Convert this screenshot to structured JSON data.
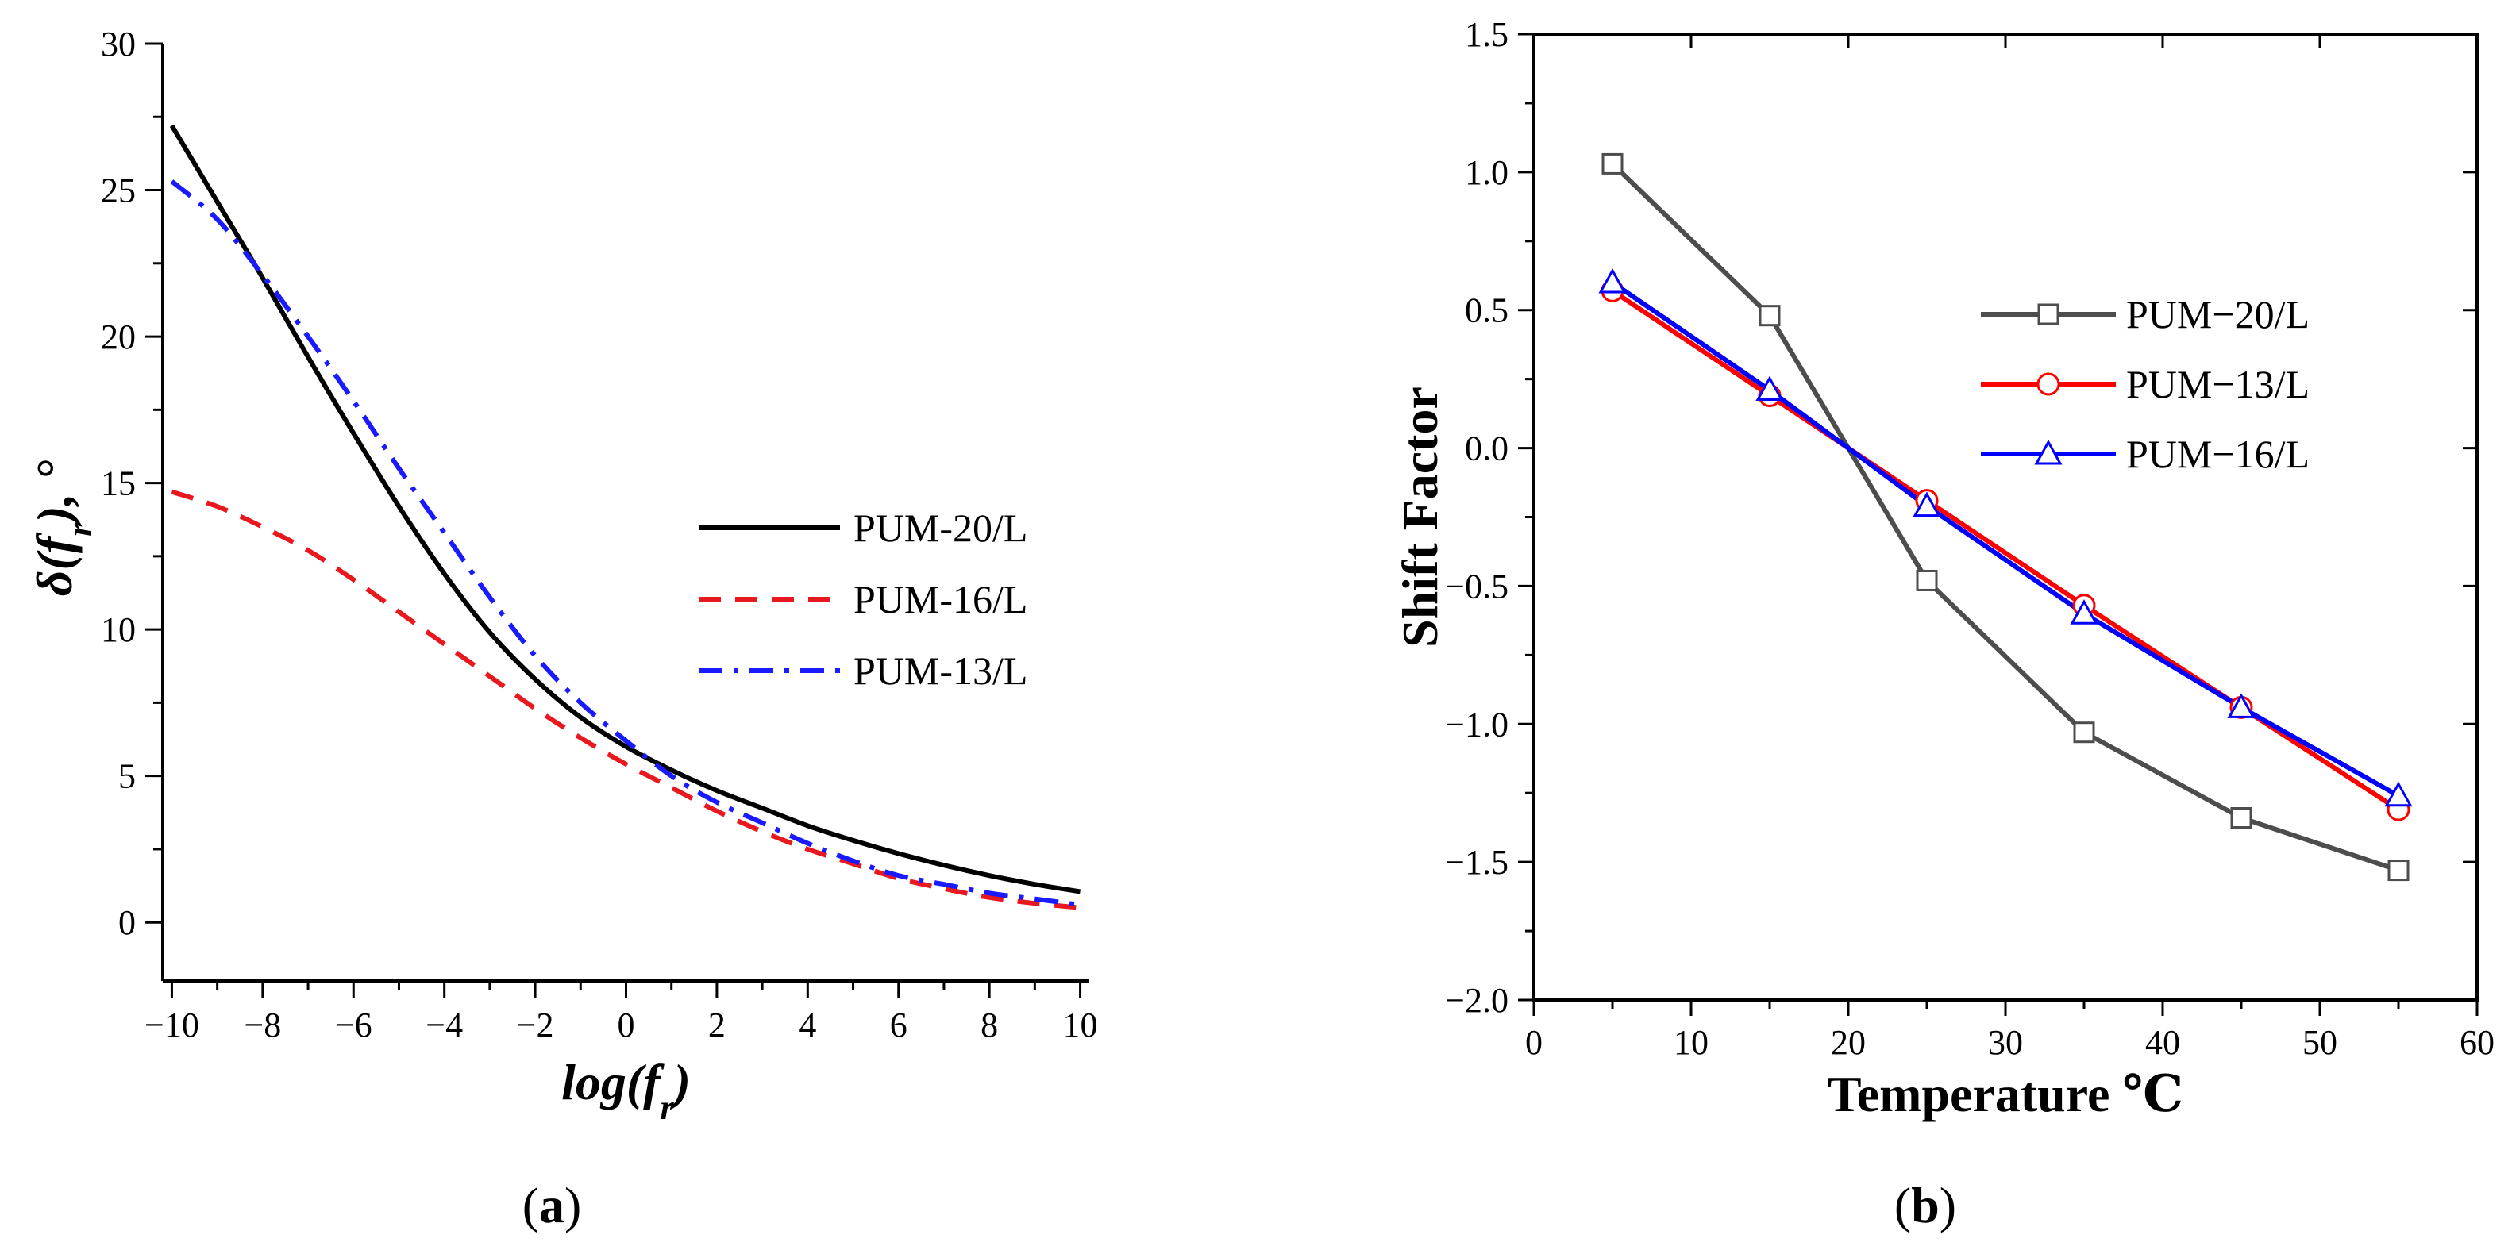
{
  "chart_data": [
    {
      "id": "a",
      "type": "line",
      "caption_letter": "a",
      "xlabel": "log(f_r)",
      "ylabel": "δ(f_r), °",
      "xlim": [
        -10.2,
        10.2
      ],
      "ylim": [
        -2,
        30
      ],
      "xticks": [
        -10,
        -8,
        -6,
        -4,
        -2,
        0,
        2,
        4,
        6,
        8,
        10
      ],
      "xtick_labels": [
        "−10",
        "−8",
        "−6",
        "−4",
        "−2",
        "0",
        "2",
        "4",
        "6",
        "8",
        "10"
      ],
      "yticks": [
        0,
        5,
        10,
        15,
        20,
        25,
        30
      ],
      "ytick_labels": [
        "0",
        "5",
        "10",
        "15",
        "20",
        "25",
        "30"
      ],
      "legend": "center-right",
      "series": [
        {
          "name": "PUM-20/L",
          "color": "#000000",
          "style": "solid",
          "x": [
            -10,
            -9,
            -8,
            -7,
            -6,
            -5,
            -4,
            -3,
            -2,
            -1,
            0,
            1,
            2,
            3,
            4,
            5,
            6,
            7,
            8,
            9,
            10
          ],
          "y": [
            27.2,
            24.6,
            22.0,
            19.3,
            16.7,
            14.2,
            11.9,
            9.9,
            8.3,
            7.0,
            6.0,
            5.2,
            4.5,
            3.9,
            3.3,
            2.8,
            2.35,
            1.95,
            1.6,
            1.3,
            1.05
          ]
        },
        {
          "name": "PUM-16/L",
          "color": "#e8191e",
          "style": "dashed",
          "x": [
            -10,
            -9,
            -8,
            -7,
            -6,
            -5,
            -4,
            -3,
            -2,
            -1,
            0,
            1,
            2,
            3,
            4,
            5,
            6,
            7,
            8,
            9,
            10
          ],
          "y": [
            14.7,
            14.2,
            13.5,
            12.7,
            11.7,
            10.6,
            9.5,
            8.4,
            7.3,
            6.3,
            5.4,
            4.6,
            3.8,
            3.1,
            2.5,
            2.0,
            1.5,
            1.15,
            0.85,
            0.65,
            0.5
          ]
        },
        {
          "name": "PUM-13/L",
          "color": "#1a1aff",
          "style": "dashdot",
          "x": [
            -10,
            -9,
            -8,
            -7,
            -6,
            -5,
            -4,
            -3,
            -2,
            -1,
            0,
            1,
            2,
            3,
            4,
            5,
            6,
            7,
            8,
            9,
            10
          ],
          "y": [
            25.3,
            24.0,
            22.1,
            20.0,
            17.8,
            15.5,
            13.3,
            11.1,
            9.1,
            7.5,
            6.2,
            5.0,
            4.1,
            3.4,
            2.7,
            2.1,
            1.6,
            1.3,
            1.0,
            0.8,
            0.6
          ]
        }
      ]
    },
    {
      "id": "b",
      "type": "line",
      "caption_letter": "b",
      "xlabel": "Temperature ℃",
      "ylabel": "Shift Factor",
      "xlim": [
        0,
        60
      ],
      "ylim": [
        -2.0,
        1.5
      ],
      "xticks": [
        0,
        10,
        20,
        30,
        40,
        50,
        60
      ],
      "xtick_labels": [
        "0",
        "10",
        "20",
        "30",
        "40",
        "50",
        "60"
      ],
      "yticks": [
        -2.0,
        -1.5,
        -1.0,
        -0.5,
        0.0,
        0.5,
        1.0,
        1.5
      ],
      "ytick_labels": [
        "−2.0",
        "−1.5",
        "−1.0",
        "−0.5",
        "0.0",
        "0.5",
        "1.0",
        "1.5"
      ],
      "legend": "upper-right",
      "series": [
        {
          "name": "PUM−20/L",
          "color": "#4d4d4d",
          "marker": "square",
          "x": [
            5,
            15,
            25,
            35,
            45,
            55
          ],
          "y": [
            1.03,
            0.48,
            -0.48,
            -1.03,
            -1.34,
            -1.53
          ]
        },
        {
          "name": "PUM−13/L",
          "color": "#ff0000",
          "marker": "circle",
          "x": [
            5,
            15,
            25,
            35,
            45,
            55
          ],
          "y": [
            0.57,
            0.19,
            -0.19,
            -0.57,
            -0.94,
            -1.31
          ]
        },
        {
          "name": "PUM−16/L",
          "color": "#0000ff",
          "marker": "triangle",
          "x": [
            5,
            15,
            25,
            35,
            45,
            55
          ],
          "y": [
            0.6,
            0.21,
            -0.21,
            -0.6,
            -0.94,
            -1.26
          ]
        }
      ]
    }
  ]
}
